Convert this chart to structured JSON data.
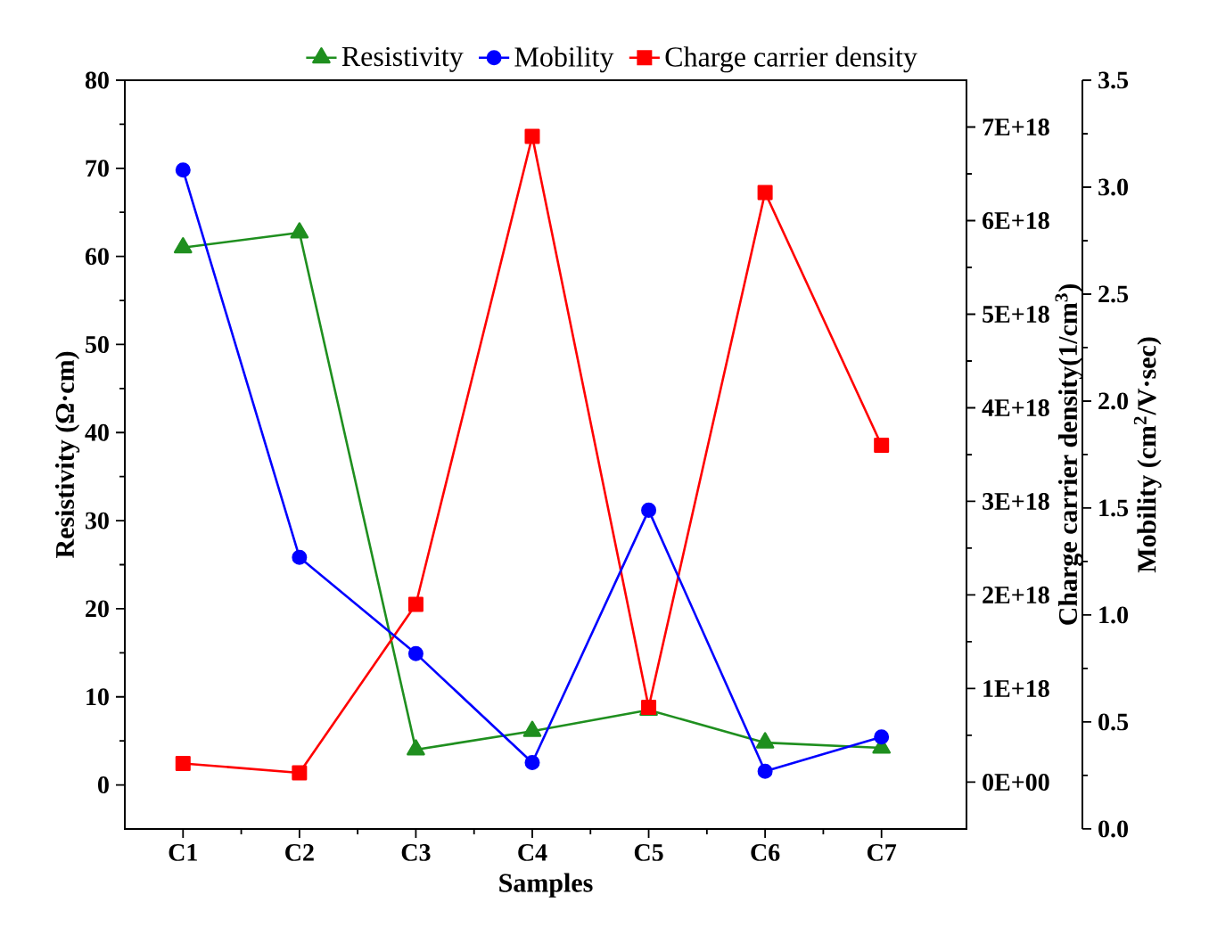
{
  "chart_data": {
    "type": "line",
    "xlabel": "Samples",
    "ylabel": "Resistivity (Ω·cm)",
    "y2label": "Charge carrier density(1/cm$^{3}$)",
    "y3label": "Mobility (cm$^{2}$/V·sec)",
    "categories": [
      "C1",
      "C2",
      "C3",
      "C4",
      "C5",
      "C6",
      "C7"
    ],
    "series": [
      {
        "name": "Resistivity",
        "color": "#1f8f1f",
        "marker": "triangle",
        "values": [
          61,
          62.7,
          4.0,
          6.1,
          8.5,
          4.8,
          4.2
        ]
      },
      {
        "name": "Mobility",
        "color": "#0000ff",
        "marker": "circle",
        "axis": "y3",
        "values": [
          3.08,
          1.27,
          0.82,
          0.31,
          1.49,
          0.27,
          0.43
        ]
      },
      {
        "name": "Charge carrier density",
        "color": "#ff0000",
        "marker": "square",
        "axis": "y2",
        "values": [
          2e+17,
          1e+17,
          1.9e+18,
          6.9e+18,
          8e+17,
          6.3e+18,
          3.6e+18
        ]
      }
    ],
    "ylim": [
      -5,
      80
    ],
    "yticks": [
      0,
      10,
      20,
      30,
      40,
      50,
      60,
      70,
      80
    ],
    "y2lim": [
      -5e+17,
      7.5e+18
    ],
    "y2ticks": [
      {
        "value": 0,
        "label": "0E+00"
      },
      {
        "value": 1e+18,
        "label": "1E+18"
      },
      {
        "value": 2e+18,
        "label": "2E+18"
      },
      {
        "value": 3e+18,
        "label": "3E+18"
      },
      {
        "value": 4e+18,
        "label": "4E+18"
      },
      {
        "value": 5e+18,
        "label": "5E+18"
      },
      {
        "value": 6e+18,
        "label": "6E+18"
      },
      {
        "value": 7e+18,
        "label": "7E+18"
      }
    ],
    "y3lim": [
      0,
      3.5
    ],
    "y3ticks": [
      {
        "value": 0,
        "label": "0.0"
      },
      {
        "value": 0.5,
        "label": "0.5"
      },
      {
        "value": 1,
        "label": "1.0"
      },
      {
        "value": 1.5,
        "label": "1.5"
      },
      {
        "value": 2,
        "label": "2.0"
      },
      {
        "value": 2.5,
        "label": "2.5"
      },
      {
        "value": 3,
        "label": "3.0"
      },
      {
        "value": 3.5,
        "label": "3.5"
      }
    ],
    "grid": false,
    "legend": "top",
    "line_style": "solid"
  }
}
